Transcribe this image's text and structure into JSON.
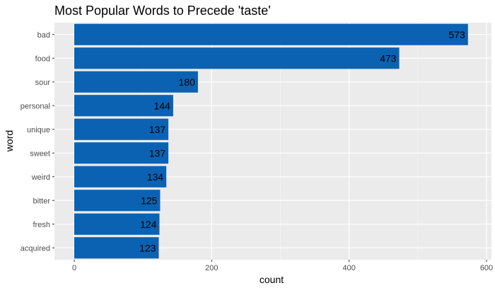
{
  "chart_data": {
    "type": "bar",
    "orientation": "horizontal",
    "title": "Most Popular Words to Precede 'taste'",
    "xlabel": "count",
    "ylabel": "word",
    "categories": [
      "bad",
      "food",
      "sour",
      "personal",
      "unique",
      "sweet",
      "weird",
      "bitter",
      "fresh",
      "acquired"
    ],
    "values": [
      573,
      473,
      180,
      144,
      137,
      137,
      134,
      125,
      124,
      123
    ],
    "xlim": [
      0,
      600
    ],
    "xticks": [
      "0",
      "200",
      "400",
      "600"
    ],
    "grid": true,
    "legend": "none",
    "colors": {
      "bar": "#0b62b3",
      "panel": "#ebebeb",
      "grid_major": "#ffffff",
      "grid_minor": "#f5f5f5"
    }
  }
}
